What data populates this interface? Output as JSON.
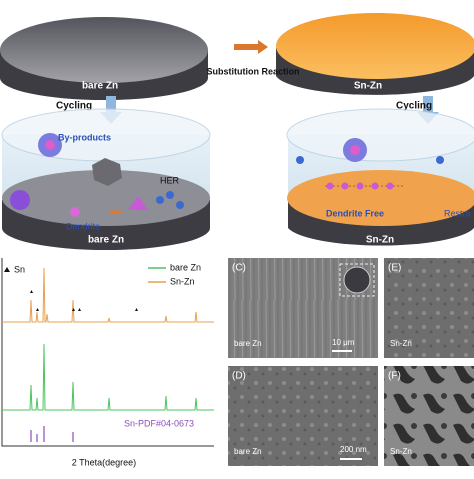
{
  "top": {
    "left_label": "bare Zn",
    "arrow_label": "Substitution Reaction",
    "right_label": "Sn-Zn"
  },
  "cycling": [
    "Cycling",
    "Cycling"
  ],
  "middle_left": {
    "labels": [
      "By-products",
      "HER",
      "Dendrite"
    ],
    "base": "bare Zn"
  },
  "middle_right": {
    "labels": [
      "Dendrite Free",
      "Restra"
    ],
    "base": "Sn-Zn"
  },
  "xrd": {
    "marker_label": "Sn",
    "legend": [
      "bare Zn",
      "Sn-Zn"
    ],
    "reference": "Sn-PDF#04-0673",
    "x_label": "2 Theta(degree)"
  },
  "sem": [
    {
      "panel": "(C)",
      "sample": "bare Zn",
      "scale": "10 μm"
    },
    {
      "panel": "(E)",
      "sample": "Sn-Zn"
    },
    {
      "panel": "(D)",
      "sample": "bare Zn",
      "scale": "200 nm"
    },
    {
      "panel": "(F)",
      "sample": "Sn-Zn"
    }
  ]
}
